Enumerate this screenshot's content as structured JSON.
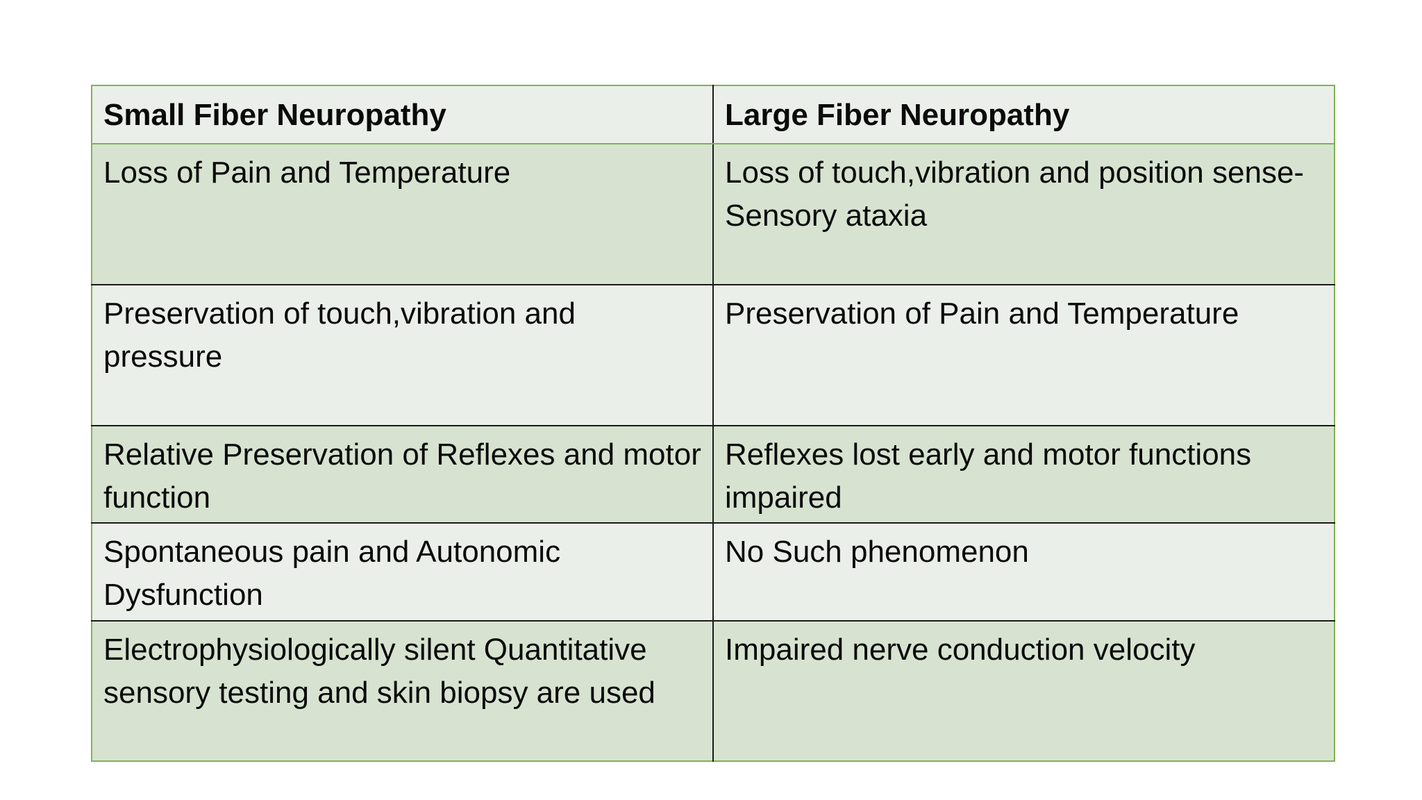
{
  "table": {
    "headers": [
      "Small Fiber Neuropathy",
      "Large Fiber Neuropathy"
    ],
    "rows": [
      [
        "Loss of Pain and Temperature",
        "Loss of touch,vibration and position sense-Sensory ataxia"
      ],
      [
        "Preservation of touch,vibration and pressure",
        "Preservation of Pain and Temperature"
      ],
      [
        "Relative Preservation of Reflexes and motor function",
        "Reflexes lost early and motor functions impaired"
      ],
      [
        "Spontaneous pain  and Autonomic Dysfunction",
        "No Such phenomenon"
      ],
      [
        "Electrophysiologically silent Quantitative sensory testing and skin biopsy are used",
        "Impaired nerve conduction velocity"
      ]
    ]
  },
  "colors": {
    "border_outer": "#7fb255",
    "border_inner": "#1a1a1a",
    "band_dark": "#d7e3d0",
    "band_light": "#ebefe9"
  }
}
